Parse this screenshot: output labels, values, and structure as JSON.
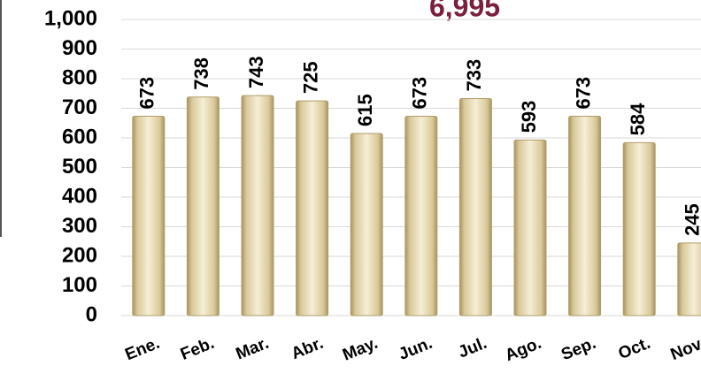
{
  "chart_data": {
    "type": "bar",
    "title": "6,995",
    "categories": [
      "Ene.",
      "Feb.",
      "Mar.",
      "Abr.",
      "May.",
      "Jun.",
      "Jul.",
      "Ago.",
      "Sep.",
      "Oct.",
      "Nov."
    ],
    "values": [
      673,
      738,
      743,
      725,
      615,
      673,
      733,
      593,
      673,
      584,
      245
    ],
    "color": "#e8dcb5",
    "ylim": [
      0,
      1000
    ],
    "yticks": [
      0,
      100,
      200,
      300,
      400,
      500,
      600,
      700,
      800,
      900,
      {
        "value": 1000,
        "label": "1,000"
      }
    ],
    "grid": true
  }
}
